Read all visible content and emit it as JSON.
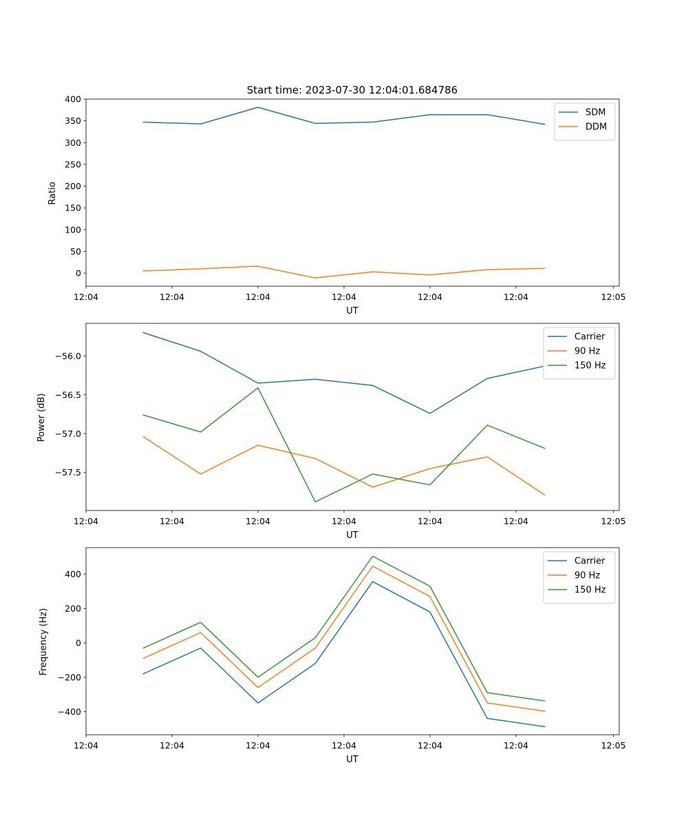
{
  "colors": {
    "blue": "#1f77b4",
    "orange": "#ff7f0e",
    "green": "#2ca02c"
  },
  "chart_data": [
    {
      "type": "line",
      "title": "Start time: 2023-07-30 12:04:01.684786",
      "xlabel": "UT",
      "ylabel": "Ratio",
      "xlim": [
        0,
        9.3
      ],
      "ylim": [
        -30,
        400
      ],
      "x": [
        1,
        2,
        3,
        4,
        5,
        6,
        7,
        8
      ],
      "xticks": [
        0,
        1.5,
        3,
        4.5,
        6,
        7.5,
        9.2
      ],
      "xtick_labels": [
        "12:04",
        "12:04",
        "12:04",
        "12:04",
        "12:04",
        "12:04",
        "12:05"
      ],
      "yticks": [
        0,
        50,
        100,
        150,
        200,
        250,
        300,
        350,
        400
      ],
      "ytick_labels": [
        "0",
        "50",
        "100",
        "150",
        "200",
        "250",
        "300",
        "350",
        "400"
      ],
      "legend_position": "top-right",
      "series": [
        {
          "name": "SDM",
          "color": "#1f77b4",
          "values": [
            347,
            343,
            381,
            344,
            347,
            364,
            364,
            342
          ]
        },
        {
          "name": "DDM",
          "color": "#ff7f0e",
          "values": [
            5,
            10,
            16,
            -11,
            3,
            -4,
            8,
            11
          ]
        }
      ]
    },
    {
      "type": "line",
      "title": "",
      "xlabel": "UT",
      "ylabel": "Power (dB)",
      "xlim": [
        0,
        9.3
      ],
      "ylim": [
        -57.99,
        -55.58
      ],
      "x": [
        1,
        2,
        3,
        4,
        5,
        6,
        7,
        8
      ],
      "xticks": [
        0,
        1.5,
        3,
        4.5,
        6,
        7.5,
        9.2
      ],
      "xtick_labels": [
        "12:04",
        "12:04",
        "12:04",
        "12:04",
        "12:04",
        "12:04",
        "12:05"
      ],
      "yticks": [
        -57.5,
        -57.0,
        -56.5,
        -56.0
      ],
      "ytick_labels": [
        "−57.5",
        "−57.0",
        "−56.5",
        "−56.0"
      ],
      "legend_position": "top-right",
      "series": [
        {
          "name": "Carrier",
          "color": "#1f77b4",
          "values": [
            -55.7,
            -55.94,
            -56.35,
            -56.3,
            -56.38,
            -56.74,
            -56.29,
            -56.13
          ]
        },
        {
          "name": "90 Hz",
          "color": "#ff7f0e",
          "values": [
            -57.04,
            -57.52,
            -57.15,
            -57.32,
            -57.69,
            -57.45,
            -57.3,
            -57.79
          ]
        },
        {
          "name": "150 Hz",
          "color": "#2ca02c",
          "values": [
            -56.76,
            -56.98,
            -56.41,
            -57.88,
            -57.52,
            -57.66,
            -56.89,
            -57.19
          ]
        }
      ]
    },
    {
      "type": "line",
      "title": "",
      "xlabel": "UT",
      "ylabel": "Frequency (Hz)",
      "xlim": [
        0,
        9.3
      ],
      "ylim": [
        -535,
        555
      ],
      "x": [
        1,
        2,
        3,
        4,
        5,
        6,
        7,
        8
      ],
      "xticks": [
        0,
        1.5,
        3,
        4.5,
        6,
        7.5,
        9.2
      ],
      "xtick_labels": [
        "12:04",
        "12:04",
        "12:04",
        "12:04",
        "12:04",
        "12:04",
        "12:05"
      ],
      "yticks": [
        -400,
        -200,
        0,
        200,
        400
      ],
      "ytick_labels": [
        "−400",
        "−200",
        "0",
        "200",
        "400"
      ],
      "legend_position": "top-right",
      "series": [
        {
          "name": "Carrier",
          "color": "#1f77b4",
          "values": [
            -180,
            -30,
            -350,
            -120,
            357,
            180,
            -440,
            -488
          ]
        },
        {
          "name": "90 Hz",
          "color": "#ff7f0e",
          "values": [
            -90,
            60,
            -260,
            -30,
            447,
            270,
            -350,
            -398
          ]
        },
        {
          "name": "150 Hz",
          "color": "#2ca02c",
          "values": [
            -30,
            120,
            -200,
            30,
            505,
            330,
            -290,
            -338
          ]
        }
      ]
    }
  ]
}
